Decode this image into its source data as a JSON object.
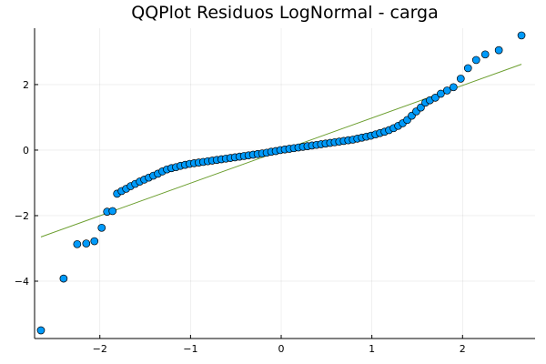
{
  "chart_data": {
    "type": "scatter",
    "title": "QQPlot Residuos LogNormal - carga",
    "xlabel": "",
    "ylabel": "",
    "xlim": [
      -2.72,
      2.8
    ],
    "ylim": [
      -5.75,
      3.72
    ],
    "grid": true,
    "legend": "none",
    "x_ticks": [
      -2,
      -1,
      0,
      1,
      2
    ],
    "x_tick_labels": [
      "−2",
      "−1",
      "0",
      "1",
      "2"
    ],
    "y_ticks": [
      -4,
      -2,
      0,
      2
    ],
    "y_tick_labels": [
      "−4",
      "−2",
      "0",
      "2"
    ],
    "series": [
      {
        "kind": "points",
        "color": "#009AFA",
        "points": [
          [
            -2.65,
            -5.5
          ],
          [
            -2.4,
            -3.92
          ],
          [
            -2.25,
            -2.87
          ],
          [
            -2.15,
            -2.85
          ],
          [
            -2.06,
            -2.78
          ],
          [
            -1.98,
            -2.37
          ],
          [
            -1.92,
            -1.88
          ],
          [
            -1.86,
            -1.86
          ],
          [
            -1.81,
            -1.33
          ],
          [
            -1.76,
            -1.25
          ],
          [
            -1.71,
            -1.18
          ],
          [
            -1.66,
            -1.1
          ],
          [
            -1.61,
            -1.03
          ],
          [
            -1.56,
            -0.96
          ],
          [
            -1.51,
            -0.9
          ],
          [
            -1.46,
            -0.84
          ],
          [
            -1.41,
            -0.78
          ],
          [
            -1.36,
            -0.72
          ],
          [
            -1.31,
            -0.65
          ],
          [
            -1.26,
            -0.59
          ],
          [
            -1.21,
            -0.55
          ],
          [
            -1.16,
            -0.52
          ],
          [
            -1.11,
            -0.48
          ],
          [
            -1.06,
            -0.45
          ],
          [
            -1.01,
            -0.42
          ],
          [
            -0.96,
            -0.4
          ],
          [
            -0.91,
            -0.38
          ],
          [
            -0.86,
            -0.36
          ],
          [
            -0.81,
            -0.34
          ],
          [
            -0.76,
            -0.32
          ],
          [
            -0.71,
            -0.3
          ],
          [
            -0.66,
            -0.28
          ],
          [
            -0.61,
            -0.26
          ],
          [
            -0.56,
            -0.24
          ],
          [
            -0.51,
            -0.22
          ],
          [
            -0.46,
            -0.2
          ],
          [
            -0.41,
            -0.18
          ],
          [
            -0.36,
            -0.16
          ],
          [
            -0.31,
            -0.14
          ],
          [
            -0.26,
            -0.12
          ],
          [
            -0.21,
            -0.1
          ],
          [
            -0.16,
            -0.08
          ],
          [
            -0.11,
            -0.05
          ],
          [
            -0.06,
            -0.03
          ],
          [
            -0.01,
            0.0
          ],
          [
            0.04,
            0.02
          ],
          [
            0.09,
            0.04
          ],
          [
            0.14,
            0.06
          ],
          [
            0.19,
            0.08
          ],
          [
            0.24,
            0.1
          ],
          [
            0.29,
            0.12
          ],
          [
            0.34,
            0.14
          ],
          [
            0.39,
            0.16
          ],
          [
            0.44,
            0.18
          ],
          [
            0.49,
            0.2
          ],
          [
            0.54,
            0.22
          ],
          [
            0.59,
            0.24
          ],
          [
            0.64,
            0.26
          ],
          [
            0.69,
            0.28
          ],
          [
            0.74,
            0.3
          ],
          [
            0.79,
            0.32
          ],
          [
            0.84,
            0.35
          ],
          [
            0.89,
            0.38
          ],
          [
            0.94,
            0.41
          ],
          [
            0.99,
            0.44
          ],
          [
            1.04,
            0.48
          ],
          [
            1.09,
            0.52
          ],
          [
            1.14,
            0.56
          ],
          [
            1.19,
            0.61
          ],
          [
            1.24,
            0.67
          ],
          [
            1.29,
            0.74
          ],
          [
            1.34,
            0.82
          ],
          [
            1.39,
            0.92
          ],
          [
            1.44,
            1.05
          ],
          [
            1.49,
            1.18
          ],
          [
            1.54,
            1.3
          ],
          [
            1.59,
            1.45
          ],
          [
            1.64,
            1.52
          ],
          [
            1.7,
            1.6
          ],
          [
            1.76,
            1.72
          ],
          [
            1.83,
            1.82
          ],
          [
            1.9,
            1.92
          ],
          [
            1.98,
            2.18
          ],
          [
            2.06,
            2.5
          ],
          [
            2.15,
            2.75
          ],
          [
            2.25,
            2.92
          ],
          [
            2.4,
            3.05
          ],
          [
            2.65,
            3.5
          ]
        ]
      },
      {
        "kind": "line",
        "color": "#6B9E2E",
        "points": [
          [
            -2.65,
            -2.65
          ],
          [
            2.65,
            2.62
          ]
        ]
      }
    ]
  }
}
